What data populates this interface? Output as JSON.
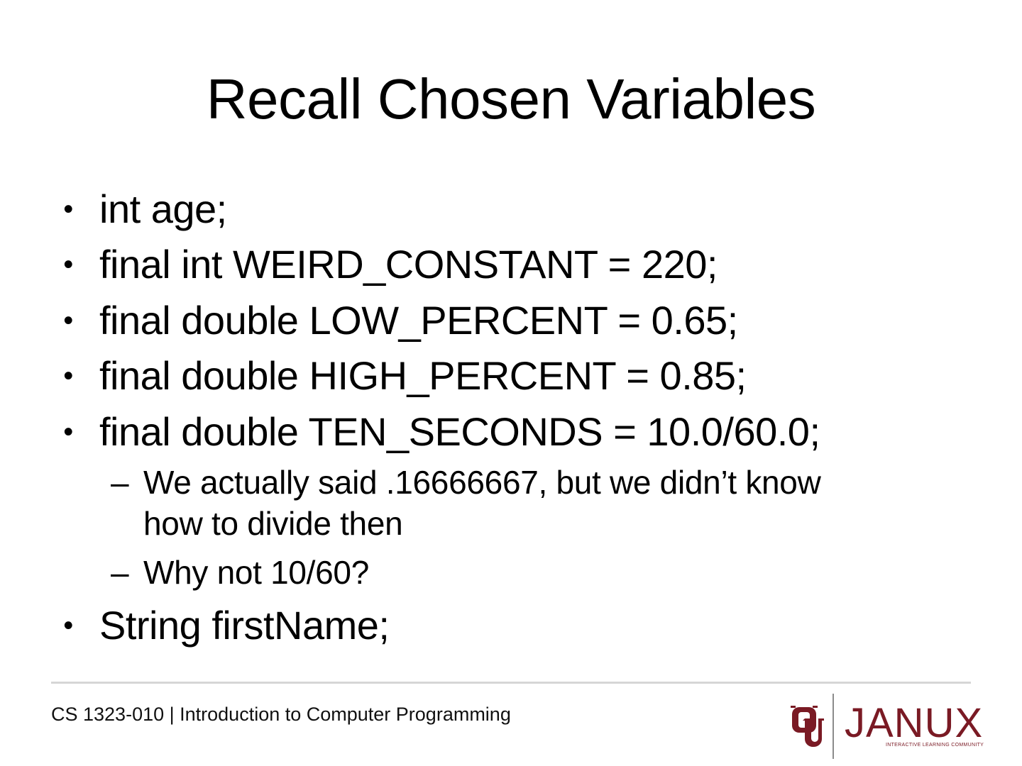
{
  "slide": {
    "title": "Recall Chosen Variables",
    "bullet_marker": "•",
    "sub_marker": "–",
    "bullets": [
      "int age;",
      "final int WEIRD_CONSTANT = 220;",
      "final double LOW_PERCENT = 0.65;",
      "final double HIGH_PERCENT = 0.85;",
      "final double TEN_SECONDS = 10.0/60.0;",
      "String firstName;"
    ],
    "sub_bullets": [
      {
        "line1": "We actually said .16666667, but we didn’t know",
        "line2": "how to divide then"
      },
      {
        "line1": "Why not 10/60?"
      }
    ]
  },
  "footer": {
    "course": "CS 1323-010 | Introduction to Computer Programming",
    "logo": {
      "wordmark": "JANUX",
      "tagline": "INTERACTIVE LEARNING COMMUNITY",
      "brand_color": "#7a1a24",
      "mark_icon": "ou-interlocking-logo"
    }
  }
}
